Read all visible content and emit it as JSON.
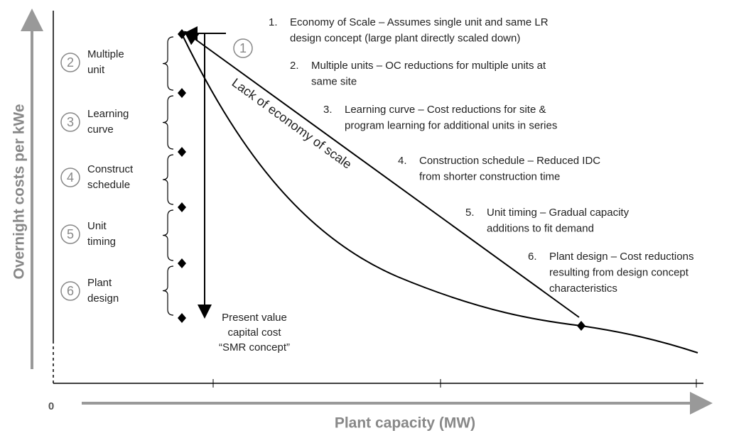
{
  "y_axis_title": "Overnight costs per kWe",
  "x_axis_title": "Plant capacity (MW)",
  "origin_label": "0",
  "curve_label": "Lack of economy of scale",
  "marker_label": "1",
  "steps": [
    {
      "number": "2",
      "lines": [
        "Multiple",
        "unit"
      ]
    },
    {
      "number": "3",
      "lines": [
        "Learning",
        "curve"
      ]
    },
    {
      "number": "4",
      "lines": [
        "Construct",
        "schedule"
      ]
    },
    {
      "number": "5",
      "lines": [
        "Unit",
        "timing"
      ]
    },
    {
      "number": "6",
      "lines": [
        "Plant",
        "design"
      ]
    }
  ],
  "notes": [
    {
      "number": "1.",
      "lines": [
        "Economy of Scale – Assumes single unit and same LR",
        "design concept (large plant directly scaled down)"
      ]
    },
    {
      "number": "2.",
      "lines": [
        "Multiple units – OC reductions for multiple units at",
        "same site"
      ]
    },
    {
      "number": "3.",
      "lines": [
        "Learning curve – Cost reductions for site &",
        "program learning for additional units in series"
      ]
    },
    {
      "number": "4.",
      "lines": [
        "Construction schedule – Reduced IDC",
        "from shorter construction time"
      ]
    },
    {
      "number": "5.",
      "lines": [
        "Unit timing – Gradual capacity",
        "additions to fit demand"
      ]
    },
    {
      "number": "6.",
      "lines": [
        "Plant design – Cost reductions",
        "resulting from design concept",
        "characteristics"
      ]
    }
  ],
  "present_value": [
    "Present value",
    "capital cost",
    "“SMR concept”"
  ]
}
